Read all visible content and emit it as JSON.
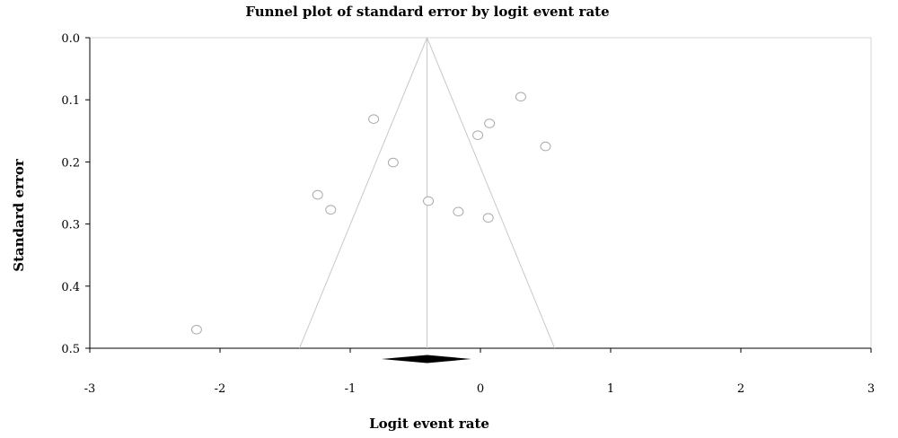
{
  "chart_data": {
    "type": "scatter",
    "title": "Funnel plot of standard error by logit event rate",
    "xlabel": "Logit event rate",
    "ylabel": "Standard error",
    "xlim": [
      -3,
      3
    ],
    "ylim": [
      0.0,
      0.5
    ],
    "y_inverted": true,
    "xticks": [
      "-3",
      "-2",
      "-1",
      "0",
      "1",
      "2",
      "3"
    ],
    "yticks": [
      "0.0",
      "0.1",
      "0.2",
      "0.3",
      "0.4",
      "0.5"
    ],
    "grid": false,
    "points": [
      {
        "x": 0.31,
        "y": 0.095
      },
      {
        "x": -0.82,
        "y": 0.131
      },
      {
        "x": 0.07,
        "y": 0.138
      },
      {
        "x": -0.02,
        "y": 0.157
      },
      {
        "x": 0.5,
        "y": 0.175
      },
      {
        "x": -0.67,
        "y": 0.201
      },
      {
        "x": -1.25,
        "y": 0.253
      },
      {
        "x": -0.4,
        "y": 0.263
      },
      {
        "x": -1.15,
        "y": 0.277
      },
      {
        "x": -0.17,
        "y": 0.28
      },
      {
        "x": 0.06,
        "y": 0.29
      },
      {
        "x": -2.18,
        "y": 0.47
      }
    ],
    "funnel": {
      "apex_x": -0.41,
      "bottom_left_x": -1.39,
      "bottom_right_x": 0.57
    },
    "summary_diamond": {
      "center_x": -0.41,
      "low_x": -0.76,
      "high_x": -0.07
    }
  }
}
